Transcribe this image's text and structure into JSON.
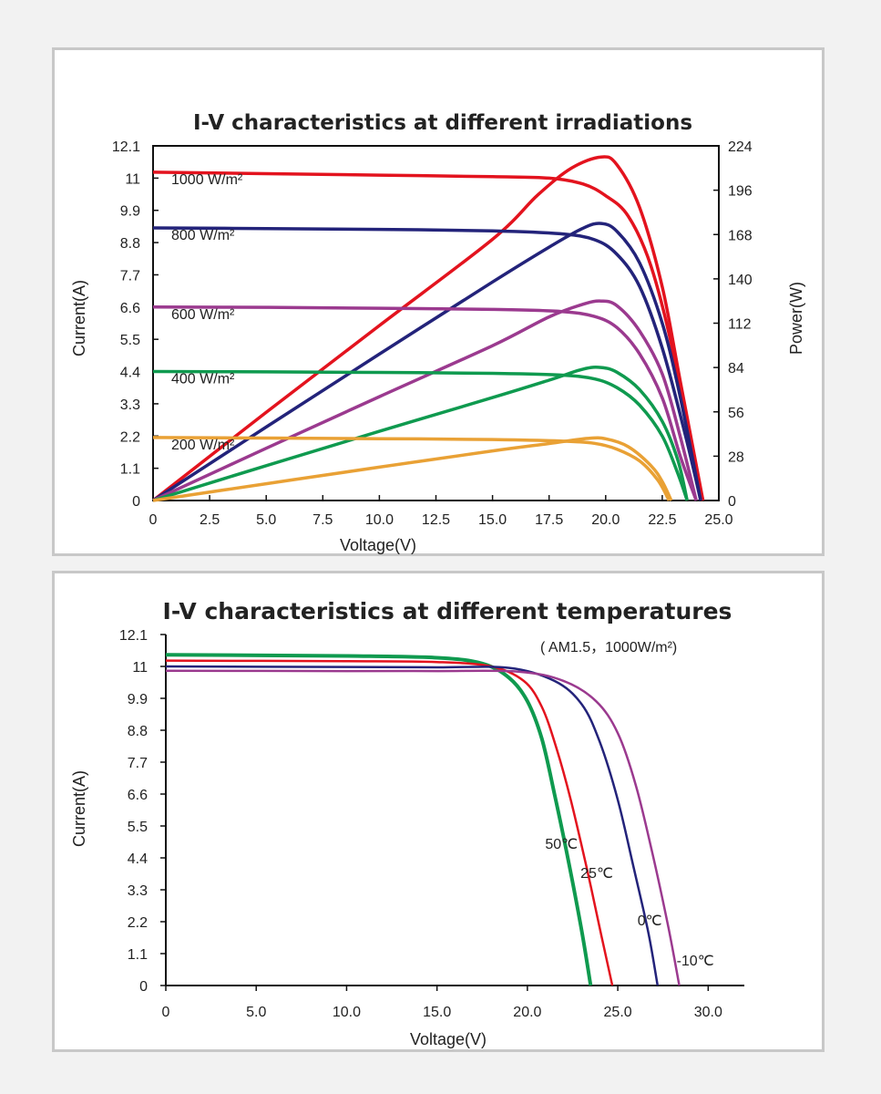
{
  "colors": {
    "red": "#e3131e",
    "blue": "#23237a",
    "purple": "#9b3a8f",
    "green": "#0f9a4f",
    "orange": "#e9a135"
  },
  "chart_data": [
    {
      "type": "line",
      "title": "I-V characteristics at different irradiations",
      "xlabel": "Voltage(V)",
      "ylabel": "Current(A)",
      "y2label": "Power(W)",
      "xlim": [
        0,
        25
      ],
      "ylim": [
        0,
        12.1
      ],
      "y2lim": [
        0,
        224
      ],
      "xticks": [
        "0",
        "2.5",
        "5.0",
        "7.5",
        "10.0",
        "12.5",
        "15.0",
        "17.5",
        "20.0",
        "22.5",
        "25.0"
      ],
      "yticks": [
        "0",
        "1.1",
        "2.2",
        "3.3",
        "4.4",
        "5.5",
        "6.6",
        "7.7",
        "8.8",
        "9.9",
        "11",
        "12.1"
      ],
      "y2ticks": [
        "0",
        "28",
        "56",
        "84",
        "112",
        "140",
        "168",
        "196",
        "224"
      ],
      "grid": false,
      "series": [
        {
          "name": "1000 W/m²",
          "color": "#e3131e",
          "iv": [
            [
              0,
              11.2
            ],
            [
              5,
              11.15
            ],
            [
              10,
              11.1
            ],
            [
              15,
              11.05
            ],
            [
              17.5,
              11.0
            ],
            [
              19,
              10.8
            ],
            [
              20,
              10.4
            ],
            [
              21,
              9.7
            ],
            [
              22,
              8.0
            ],
            [
              23,
              5.0
            ],
            [
              23.7,
              2.0
            ],
            [
              24.3,
              0
            ]
          ],
          "pv": [
            [
              0,
              0
            ],
            [
              5,
              55.7
            ],
            [
              10,
              110.5
            ],
            [
              15,
              165
            ],
            [
              17,
              193
            ],
            [
              18.5,
              210
            ],
            [
              19.8,
              217
            ],
            [
              20.5,
              212
            ],
            [
              21.5,
              185
            ],
            [
              22.5,
              135
            ],
            [
              23.3,
              75
            ],
            [
              24.3,
              0
            ]
          ]
        },
        {
          "name": "800 W/m²",
          "color": "#23237a",
          "iv": [
            [
              0,
              9.3
            ],
            [
              5,
              9.28
            ],
            [
              10,
              9.25
            ],
            [
              15,
              9.2
            ],
            [
              18,
              9.1
            ],
            [
              19.5,
              8.9
            ],
            [
              20.5,
              8.4
            ],
            [
              21.5,
              7.3
            ],
            [
              22.5,
              5.2
            ],
            [
              23.5,
              2.3
            ],
            [
              24.2,
              0
            ]
          ],
          "pv": [
            [
              0,
              0
            ],
            [
              5,
              46.4
            ],
            [
              10,
              92.5
            ],
            [
              15,
              138
            ],
            [
              17.5,
              160
            ],
            [
              19,
              172
            ],
            [
              19.8,
              175
            ],
            [
              20.5,
              170
            ],
            [
              21.5,
              150
            ],
            [
              22.5,
              112
            ],
            [
              23.3,
              65
            ],
            [
              24.2,
              0
            ]
          ]
        },
        {
          "name": "600 W/m²",
          "color": "#9b3a8f",
          "iv": [
            [
              0,
              6.6
            ],
            [
              5,
              6.59
            ],
            [
              10,
              6.56
            ],
            [
              15,
              6.52
            ],
            [
              18,
              6.45
            ],
            [
              19.5,
              6.28
            ],
            [
              20.5,
              5.9
            ],
            [
              21.5,
              5.0
            ],
            [
              22.5,
              3.5
            ],
            [
              23.3,
              1.5
            ],
            [
              24,
              0
            ]
          ],
          "pv": [
            [
              0,
              0
            ],
            [
              5,
              33
            ],
            [
              10,
              65.6
            ],
            [
              15,
              97.8
            ],
            [
              17.5,
              116
            ],
            [
              19,
              124
            ],
            [
              19.8,
              126
            ],
            [
              20.5,
              123
            ],
            [
              21.5,
              107
            ],
            [
              22.5,
              80
            ],
            [
              23.3,
              40
            ],
            [
              24,
              0
            ]
          ]
        },
        {
          "name": "400 W/m²",
          "color": "#0f9a4f",
          "iv": [
            [
              0,
              4.4
            ],
            [
              5,
              4.39
            ],
            [
              10,
              4.37
            ],
            [
              15,
              4.34
            ],
            [
              18,
              4.28
            ],
            [
              19.5,
              4.15
            ],
            [
              20.5,
              3.85
            ],
            [
              21.5,
              3.25
            ],
            [
              22.5,
              2.2
            ],
            [
              23.2,
              0.9
            ],
            [
              23.6,
              0
            ]
          ],
          "pv": [
            [
              0,
              0
            ],
            [
              5,
              22
            ],
            [
              10,
              43.7
            ],
            [
              15,
              65
            ],
            [
              17.5,
              76
            ],
            [
              19,
              83
            ],
            [
              19.8,
              84
            ],
            [
              20.5,
              81
            ],
            [
              21.5,
              70
            ],
            [
              22.5,
              50
            ],
            [
              23.2,
              25
            ],
            [
              23.6,
              0
            ]
          ]
        },
        {
          "name": "200 W/m²",
          "color": "#e9a135",
          "iv": [
            [
              0,
              2.15
            ],
            [
              5,
              2.13
            ],
            [
              10,
              2.11
            ],
            [
              15,
              2.08
            ],
            [
              18,
              2.03
            ],
            [
              19.5,
              1.95
            ],
            [
              20.5,
              1.75
            ],
            [
              21.5,
              1.35
            ],
            [
              22.3,
              0.7
            ],
            [
              22.8,
              0
            ]
          ],
          "pv": [
            [
              0,
              0
            ],
            [
              5,
              10.6
            ],
            [
              10,
              21.1
            ],
            [
              15,
              31.3
            ],
            [
              17.5,
              36
            ],
            [
              19.2,
              39.2
            ],
            [
              20,
              39
            ],
            [
              21,
              34
            ],
            [
              22,
              22
            ],
            [
              22.5,
              12
            ],
            [
              22.9,
              0
            ]
          ]
        }
      ]
    },
    {
      "type": "line",
      "title": "I-V characteristics at different temperatures",
      "subtitle": "( AM1.5，1000W/m²)",
      "xlabel": "Voltage(V)",
      "ylabel": "Current(A)",
      "xlim": [
        0,
        32
      ],
      "ylim": [
        0,
        12.1
      ],
      "xticks": [
        "0",
        "5.0",
        "10.0",
        "15.0",
        "20.0",
        "25.0",
        "30.0"
      ],
      "yticks": [
        "0",
        "1.1",
        "2.2",
        "3.3",
        "4.4",
        "5.5",
        "6.6",
        "7.7",
        "8.8",
        "9.9",
        "11",
        "12.1"
      ],
      "grid": false,
      "series": [
        {
          "name": "50℃",
          "color": "#0f9a4f",
          "points": [
            [
              0,
              11.4
            ],
            [
              10,
              11.36
            ],
            [
              15,
              11.3
            ],
            [
              17.5,
              11.1
            ],
            [
              19,
              10.6
            ],
            [
              20,
              9.8
            ],
            [
              20.8,
              8.5
            ],
            [
              21.5,
              6.6
            ],
            [
              22.3,
              4.2
            ],
            [
              23,
              1.9
            ],
            [
              23.5,
              0
            ]
          ]
        },
        {
          "name": "25℃",
          "color": "#e3131e",
          "points": [
            [
              0,
              11.2
            ],
            [
              10,
              11.18
            ],
            [
              15,
              11.15
            ],
            [
              18,
              11.0
            ],
            [
              19.8,
              10.5
            ],
            [
              20.8,
              9.6
            ],
            [
              21.6,
              8.2
            ],
            [
              22.4,
              6.4
            ],
            [
              23.3,
              4.0
            ],
            [
              24.1,
              1.7
            ],
            [
              24.7,
              0
            ]
          ]
        },
        {
          "name": "0℃",
          "color": "#23237a",
          "points": [
            [
              0,
              11.0
            ],
            [
              10,
              10.98
            ],
            [
              15,
              10.97
            ],
            [
              19,
              10.95
            ],
            [
              21.5,
              10.5
            ],
            [
              23,
              9.7
            ],
            [
              24,
              8.4
            ],
            [
              25,
              6.4
            ],
            [
              25.9,
              4.0
            ],
            [
              26.7,
              1.8
            ],
            [
              27.2,
              0
            ]
          ]
        },
        {
          "name": "-10℃",
          "color": "#9b3a8f",
          "points": [
            [
              0,
              10.85
            ],
            [
              10,
              10.84
            ],
            [
              15,
              10.84
            ],
            [
              19.5,
              10.82
            ],
            [
              22,
              10.5
            ],
            [
              23.8,
              9.8
            ],
            [
              25,
              8.7
            ],
            [
              26,
              6.9
            ],
            [
              26.9,
              4.6
            ],
            [
              27.8,
              2.0
            ],
            [
              28.4,
              0
            ]
          ]
        }
      ]
    }
  ]
}
